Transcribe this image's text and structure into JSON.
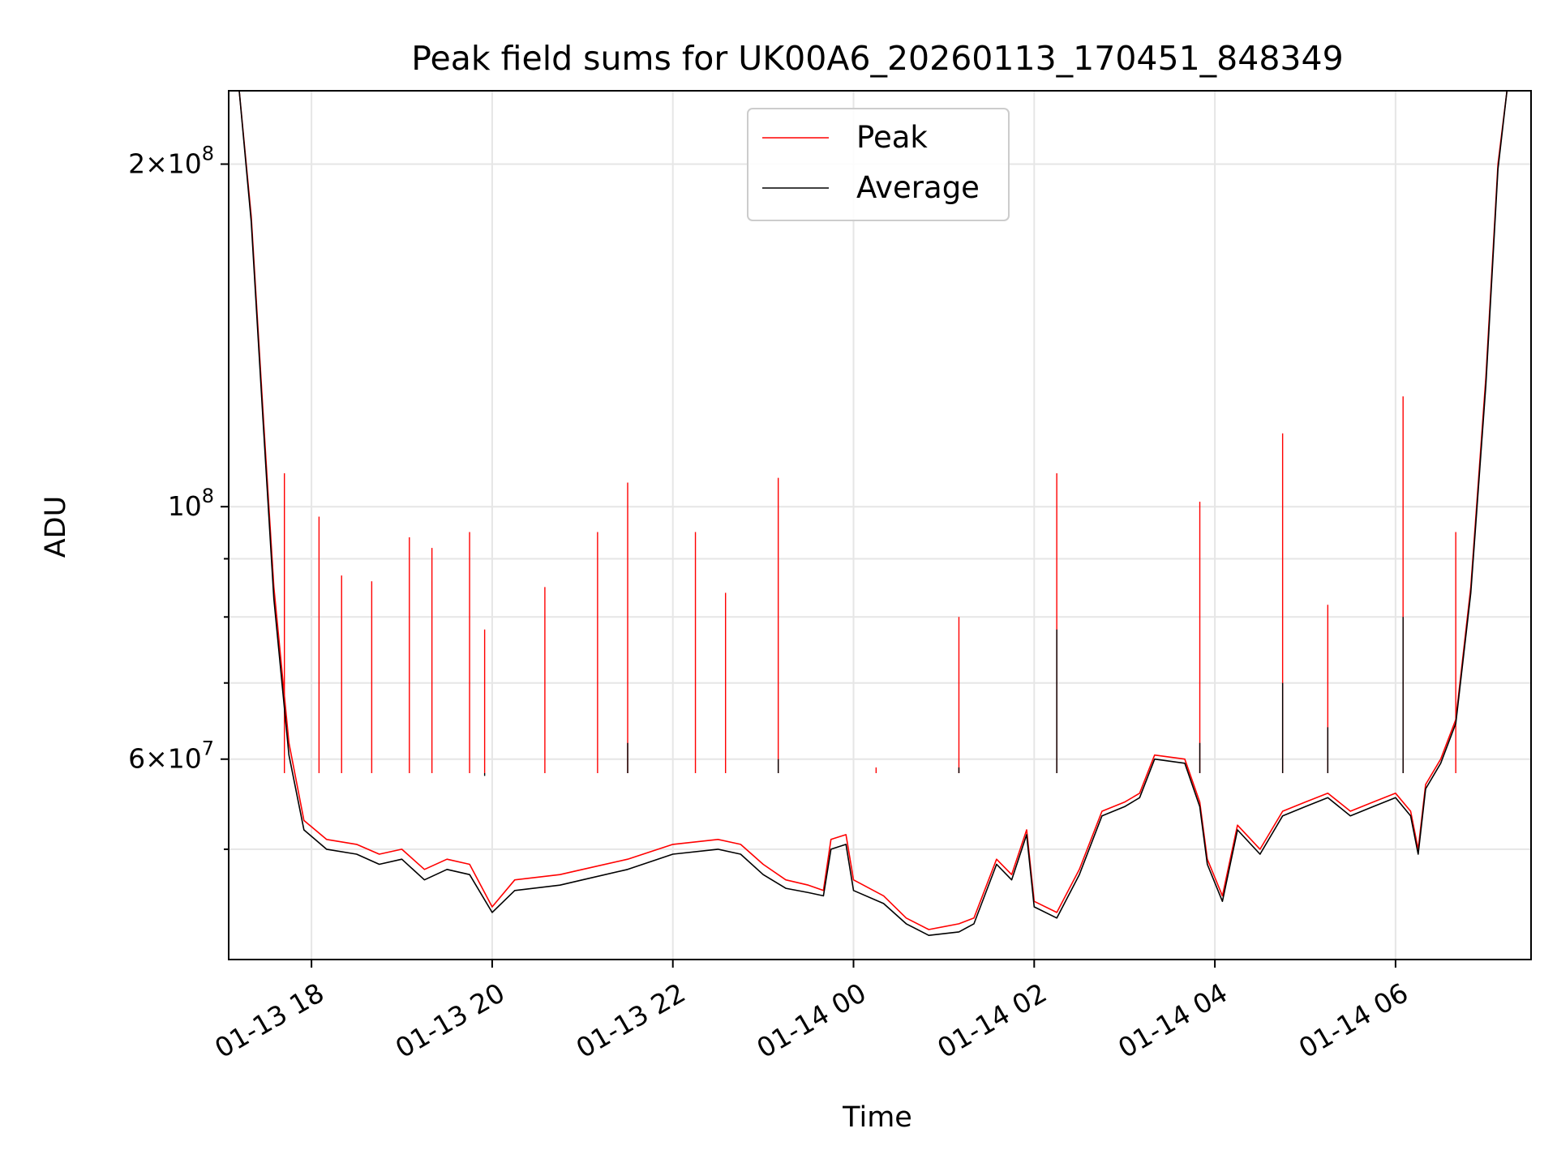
{
  "chart_data": {
    "type": "line",
    "title": "Peak field sums for UK00A6_20260113_170451_848349",
    "xlabel": "Time",
    "ylabel": "ADU",
    "yscale": "log",
    "ylim": [
      40000000,
      232000000
    ],
    "xlim": [
      "2026-01-13 17:05",
      "2026-01-14 07:30"
    ],
    "grid": true,
    "legend_position": "upper center",
    "x_ticks": [
      {
        "t": "2026-01-13 18:00",
        "label": "01-13 18"
      },
      {
        "t": "2026-01-13 20:00",
        "label": "01-13 20"
      },
      {
        "t": "2026-01-13 22:00",
        "label": "01-13 22"
      },
      {
        "t": "2026-01-14 00:00",
        "label": "01-14 00"
      },
      {
        "t": "2026-01-14 02:00",
        "label": "01-14 02"
      },
      {
        "t": "2026-01-14 04:00",
        "label": "01-14 04"
      },
      {
        "t": "2026-01-14 06:00",
        "label": "01-14 06"
      }
    ],
    "y_ticks": [
      {
        "v": 200000000,
        "base": "2×10",
        "exp": "8"
      },
      {
        "v": 100000000,
        "base": "10",
        "exp": "8"
      },
      {
        "v": 60000000,
        "base": "6×10",
        "exp": "7"
      }
    ],
    "y_minor_ticks": [
      50000000,
      70000000,
      80000000,
      90000000
    ],
    "series": [
      {
        "name": "Peak",
        "color": "#ff0000",
        "baseline": [
          [
            "2026-01-13 17:05",
            232000000
          ],
          [
            "2026-01-13 17:12",
            232000000
          ],
          [
            "2026-01-13 17:20",
            180000000
          ],
          [
            "2026-01-13 17:28",
            120000000
          ],
          [
            "2026-01-13 17:35",
            85000000
          ],
          [
            "2026-01-13 17:45",
            62000000
          ],
          [
            "2026-01-13 17:55",
            53000000
          ],
          [
            "2026-01-13 18:10",
            51000000
          ],
          [
            "2026-01-13 18:30",
            50500000
          ],
          [
            "2026-01-13 18:45",
            49500000
          ],
          [
            "2026-01-13 19:00",
            50000000
          ],
          [
            "2026-01-13 19:15",
            48000000
          ],
          [
            "2026-01-13 19:30",
            49000000
          ],
          [
            "2026-01-13 19:45",
            48500000
          ],
          [
            "2026-01-13 20:00",
            44500000
          ],
          [
            "2026-01-13 20:15",
            47000000
          ],
          [
            "2026-01-13 20:45",
            47500000
          ],
          [
            "2026-01-13 21:00",
            48000000
          ],
          [
            "2026-01-13 21:30",
            49000000
          ],
          [
            "2026-01-13 22:00",
            50500000
          ],
          [
            "2026-01-13 22:30",
            51000000
          ],
          [
            "2026-01-13 22:45",
            50500000
          ],
          [
            "2026-01-13 23:00",
            48500000
          ],
          [
            "2026-01-13 23:15",
            47000000
          ],
          [
            "2026-01-13 23:30",
            46500000
          ],
          [
            "2026-01-13 23:40",
            46000000
          ],
          [
            "2026-01-13 23:45",
            51000000
          ],
          [
            "2026-01-13 23:55",
            51500000
          ],
          [
            "2026-01-14 00:00",
            47000000
          ],
          [
            "2026-01-14 00:20",
            45500000
          ],
          [
            "2026-01-14 00:35",
            43500000
          ],
          [
            "2026-01-14 00:50",
            42500000
          ],
          [
            "2026-01-14 01:10",
            43000000
          ],
          [
            "2026-01-14 01:20",
            43500000
          ],
          [
            "2026-01-14 01:35",
            49000000
          ],
          [
            "2026-01-14 01:45",
            47500000
          ],
          [
            "2026-01-14 01:55",
            52000000
          ],
          [
            "2026-01-14 02:00",
            45000000
          ],
          [
            "2026-01-14 02:15",
            44000000
          ],
          [
            "2026-01-14 02:30",
            48000000
          ],
          [
            "2026-01-14 02:45",
            54000000
          ],
          [
            "2026-01-14 03:00",
            55000000
          ],
          [
            "2026-01-14 03:10",
            56000000
          ],
          [
            "2026-01-14 03:20",
            60500000
          ],
          [
            "2026-01-14 03:40",
            60000000
          ],
          [
            "2026-01-14 03:50",
            55000000
          ],
          [
            "2026-01-14 03:55",
            49000000
          ],
          [
            "2026-01-14 04:05",
            45500000
          ],
          [
            "2026-01-14 04:15",
            52500000
          ],
          [
            "2026-01-14 04:30",
            50000000
          ],
          [
            "2026-01-14 04:45",
            54000000
          ],
          [
            "2026-01-14 05:00",
            55000000
          ],
          [
            "2026-01-14 05:15",
            56000000
          ],
          [
            "2026-01-14 05:30",
            54000000
          ],
          [
            "2026-01-14 05:45",
            55000000
          ],
          [
            "2026-01-14 06:00",
            56000000
          ],
          [
            "2026-01-14 06:10",
            54000000
          ],
          [
            "2026-01-14 06:15",
            50000000
          ],
          [
            "2026-01-14 06:20",
            57000000
          ],
          [
            "2026-01-14 06:30",
            60000000
          ],
          [
            "2026-01-14 06:40",
            65000000
          ],
          [
            "2026-01-14 06:50",
            85000000
          ],
          [
            "2026-01-14 07:00",
            130000000
          ],
          [
            "2026-01-14 07:08",
            200000000
          ],
          [
            "2026-01-14 07:14",
            232000000
          ],
          [
            "2026-01-14 07:30",
            232000000
          ]
        ],
        "spikes": [
          [
            "2026-01-13 17:42",
            107000000
          ],
          [
            "2026-01-13 18:05",
            98000000
          ],
          [
            "2026-01-13 18:20",
            87000000
          ],
          [
            "2026-01-13 18:40",
            86000000
          ],
          [
            "2026-01-13 19:05",
            94000000
          ],
          [
            "2026-01-13 19:20",
            92000000
          ],
          [
            "2026-01-13 19:45",
            95000000
          ],
          [
            "2026-01-13 19:55",
            78000000
          ],
          [
            "2026-01-13 20:35",
            85000000
          ],
          [
            "2026-01-13 21:10",
            95000000
          ],
          [
            "2026-01-13 21:30",
            105000000
          ],
          [
            "2026-01-13 22:15",
            95000000
          ],
          [
            "2026-01-13 22:35",
            84000000
          ],
          [
            "2026-01-13 23:10",
            106000000
          ],
          [
            "2026-01-14 00:15",
            59000000
          ],
          [
            "2026-01-14 01:10",
            80000000
          ],
          [
            "2026-01-14 02:15",
            107000000
          ],
          [
            "2026-01-14 03:50",
            101000000
          ],
          [
            "2026-01-14 04:45",
            116000000
          ],
          [
            "2026-01-14 05:15",
            82000000
          ],
          [
            "2026-01-14 06:05",
            125000000
          ],
          [
            "2026-01-14 06:40",
            95000000
          ]
        ]
      },
      {
        "name": "Average",
        "color": "#000000",
        "baseline": [
          [
            "2026-01-13 17:05",
            232000000
          ],
          [
            "2026-01-13 17:12",
            232000000
          ],
          [
            "2026-01-13 17:20",
            178000000
          ],
          [
            "2026-01-13 17:28",
            118000000
          ],
          [
            "2026-01-13 17:35",
            83000000
          ],
          [
            "2026-01-13 17:45",
            60500000
          ],
          [
            "2026-01-13 17:55",
            52000000
          ],
          [
            "2026-01-13 18:10",
            50000000
          ],
          [
            "2026-01-13 18:30",
            49500000
          ],
          [
            "2026-01-13 18:45",
            48500000
          ],
          [
            "2026-01-13 19:00",
            49000000
          ],
          [
            "2026-01-13 19:15",
            47000000
          ],
          [
            "2026-01-13 19:30",
            48000000
          ],
          [
            "2026-01-13 19:45",
            47500000
          ],
          [
            "2026-01-13 20:00",
            44000000
          ],
          [
            "2026-01-13 20:15",
            46000000
          ],
          [
            "2026-01-13 20:45",
            46500000
          ],
          [
            "2026-01-13 21:00",
            47000000
          ],
          [
            "2026-01-13 21:30",
            48000000
          ],
          [
            "2026-01-13 22:00",
            49500000
          ],
          [
            "2026-01-13 22:30",
            50000000
          ],
          [
            "2026-01-13 22:45",
            49500000
          ],
          [
            "2026-01-13 23:00",
            47500000
          ],
          [
            "2026-01-13 23:15",
            46200000
          ],
          [
            "2026-01-13 23:30",
            45800000
          ],
          [
            "2026-01-13 23:40",
            45500000
          ],
          [
            "2026-01-13 23:45",
            50000000
          ],
          [
            "2026-01-13 23:55",
            50500000
          ],
          [
            "2026-01-14 00:00",
            46000000
          ],
          [
            "2026-01-14 00:20",
            44800000
          ],
          [
            "2026-01-14 00:35",
            43000000
          ],
          [
            "2026-01-14 00:50",
            42000000
          ],
          [
            "2026-01-14 01:10",
            42300000
          ],
          [
            "2026-01-14 01:20",
            43000000
          ],
          [
            "2026-01-14 01:35",
            48500000
          ],
          [
            "2026-01-14 01:45",
            47000000
          ],
          [
            "2026-01-14 01:55",
            51500000
          ],
          [
            "2026-01-14 02:00",
            44500000
          ],
          [
            "2026-01-14 02:15",
            43500000
          ],
          [
            "2026-01-14 02:30",
            47500000
          ],
          [
            "2026-01-14 02:45",
            53500000
          ],
          [
            "2026-01-14 03:00",
            54500000
          ],
          [
            "2026-01-14 03:10",
            55500000
          ],
          [
            "2026-01-14 03:20",
            60000000
          ],
          [
            "2026-01-14 03:40",
            59500000
          ],
          [
            "2026-01-14 03:50",
            54500000
          ],
          [
            "2026-01-14 03:55",
            48500000
          ],
          [
            "2026-01-14 04:05",
            45000000
          ],
          [
            "2026-01-14 04:15",
            52000000
          ],
          [
            "2026-01-14 04:30",
            49500000
          ],
          [
            "2026-01-14 04:45",
            53500000
          ],
          [
            "2026-01-14 05:00",
            54500000
          ],
          [
            "2026-01-14 05:15",
            55500000
          ],
          [
            "2026-01-14 05:30",
            53500000
          ],
          [
            "2026-01-14 05:45",
            54500000
          ],
          [
            "2026-01-14 06:00",
            55500000
          ],
          [
            "2026-01-14 06:10",
            53500000
          ],
          [
            "2026-01-14 06:15",
            49500000
          ],
          [
            "2026-01-14 06:20",
            56500000
          ],
          [
            "2026-01-14 06:30",
            59500000
          ],
          [
            "2026-01-14 06:40",
            64500000
          ],
          [
            "2026-01-14 06:50",
            84000000
          ],
          [
            "2026-01-14 07:00",
            128000000
          ],
          [
            "2026-01-14 07:08",
            198000000
          ],
          [
            "2026-01-14 07:14",
            232000000
          ],
          [
            "2026-01-14 07:30",
            232000000
          ]
        ],
        "spikes": [
          [
            "2026-01-13 19:55",
            58000000
          ],
          [
            "2026-01-13 21:30",
            62000000
          ],
          [
            "2026-01-13 23:10",
            60000000
          ],
          [
            "2026-01-14 01:10",
            59000000
          ],
          [
            "2026-01-14 02:15",
            78000000
          ],
          [
            "2026-01-14 03:50",
            62000000
          ],
          [
            "2026-01-14 04:45",
            70000000
          ],
          [
            "2026-01-14 05:15",
            64000000
          ],
          [
            "2026-01-14 06:05",
            80000000
          ]
        ]
      }
    ]
  }
}
